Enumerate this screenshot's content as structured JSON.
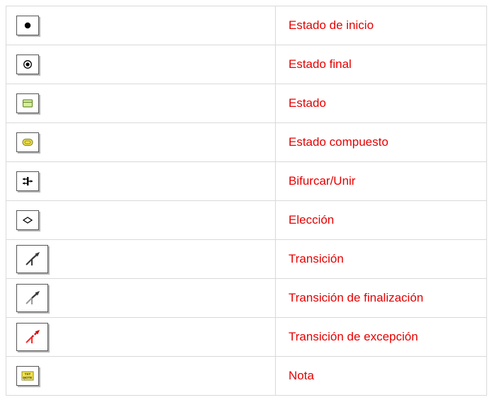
{
  "table": {
    "label_color": "#e60000",
    "cell_border_color": "#d9d9d9",
    "icon_border_color": "#555555",
    "rows": [
      {
        "id": "initial-state",
        "label": "Estado de inicio",
        "icon": "initial-state-icon",
        "box": "small"
      },
      {
        "id": "final-state",
        "label": "Estado final",
        "icon": "final-state-icon",
        "box": "small"
      },
      {
        "id": "state",
        "label": "Estado",
        "icon": "state-icon",
        "box": "small"
      },
      {
        "id": "composite",
        "label": "Estado compuesto",
        "icon": "composite-state-icon",
        "box": "small"
      },
      {
        "id": "fork-join",
        "label": "Bifurcar/Unir",
        "icon": "fork-join-icon",
        "box": "small"
      },
      {
        "id": "choice",
        "label": "Elección",
        "icon": "choice-icon",
        "box": "small"
      },
      {
        "id": "transition",
        "label": "Transición",
        "icon": "transition-icon",
        "box": "big"
      },
      {
        "id": "completion",
        "label": "Transición de finalización",
        "icon": "completion-transition-icon",
        "box": "big"
      },
      {
        "id": "exception",
        "label": "Transición de excepción",
        "icon": "exception-transition-icon",
        "box": "big"
      },
      {
        "id": "note",
        "label": "Nota",
        "icon": "note-icon",
        "box": "small"
      }
    ],
    "icon_palette": {
      "black": "#000000",
      "dark": "#3a3a3a",
      "red": "#d40000",
      "red2": "#ff2a2a",
      "yellow": "#f2e24b",
      "green": "#d6efa0",
      "green_border": "#6e8f2e",
      "olive": "#8d8d2f",
      "white": "#ffffff",
      "gray": "#9a9a9a"
    }
  }
}
